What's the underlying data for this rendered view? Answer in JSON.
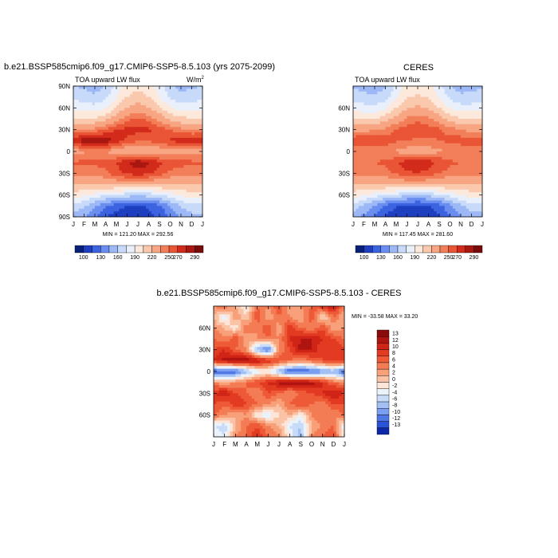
{
  "chart_data": [
    {
      "type": "heatmap",
      "title": "b.e21.BSSP585cmip6.f09_g17.CMIP6-SSP5-8.5.103 (yrs 2075-2099)",
      "subtitle_left": "TOA upward LW flux",
      "units": "W/m",
      "units_sup": "2",
      "x_ticks": [
        "J",
        "F",
        "M",
        "A",
        "M",
        "J",
        "J",
        "A",
        "S",
        "O",
        "N",
        "D",
        "J"
      ],
      "y_ticks": [
        "90N",
        "60N",
        "30N",
        "0",
        "30S",
        "60S",
        "90S"
      ],
      "y_values": [
        90,
        60,
        30,
        0,
        -30,
        -60,
        -90
      ],
      "ylim": [
        -90,
        90
      ],
      "stats": "MIN = 121.20   MAX = 292.56",
      "colorbar": {
        "labels": [
          "100",
          "130",
          "160",
          "190",
          "220",
          "250",
          "270",
          "290"
        ],
        "colors": [
          "#08207a",
          "#1d3fc0",
          "#3c63e0",
          "#6a8ef0",
          "#9cb8f6",
          "#c8daf9",
          "#e9f0fb",
          "#fde8dc",
          "#fac8ad",
          "#f7a582",
          "#f27f59",
          "#e95535",
          "#d22b1b",
          "#a81710",
          "#780a0a"
        ]
      },
      "field": {
        "n_lat": 13,
        "n_mon": 13,
        "lats": [
          90,
          75,
          60,
          45,
          30,
          15,
          0,
          -15,
          -30,
          -45,
          -60,
          -75,
          -90
        ],
        "values": [
          [
            176,
            172,
            168,
            176,
            196,
            212,
            216,
            212,
            196,
            178,
            170,
            172,
            176
          ],
          [
            186,
            182,
            178,
            186,
            204,
            220,
            226,
            220,
            204,
            188,
            180,
            182,
            186
          ],
          [
            200,
            198,
            196,
            204,
            222,
            236,
            242,
            236,
            222,
            206,
            198,
            198,
            200
          ],
          [
            222,
            220,
            222,
            230,
            244,
            256,
            262,
            256,
            246,
            232,
            224,
            222,
            222
          ],
          [
            250,
            250,
            254,
            262,
            270,
            274,
            274,
            272,
            266,
            260,
            254,
            250,
            250
          ],
          [
            278,
            286,
            290,
            286,
            276,
            268,
            262,
            262,
            266,
            272,
            276,
            276,
            278
          ],
          [
            244,
            248,
            252,
            250,
            242,
            236,
            234,
            236,
            240,
            244,
            246,
            244,
            244
          ],
          [
            262,
            262,
            262,
            264,
            270,
            280,
            288,
            282,
            272,
            266,
            264,
            262,
            262
          ],
          [
            254,
            254,
            254,
            258,
            266,
            272,
            276,
            272,
            264,
            258,
            254,
            254,
            254
          ],
          [
            236,
            236,
            236,
            238,
            240,
            242,
            242,
            240,
            238,
            236,
            236,
            236,
            236
          ],
          [
            214,
            208,
            200,
            192,
            186,
            182,
            180,
            182,
            188,
            198,
            208,
            214,
            214
          ],
          [
            186,
            176,
            162,
            146,
            136,
            130,
            128,
            132,
            142,
            160,
            176,
            186,
            186
          ],
          [
            170,
            160,
            146,
            130,
            122,
            121,
            122,
            124,
            132,
            148,
            162,
            170,
            170
          ]
        ]
      }
    },
    {
      "type": "heatmap",
      "title": "CERES",
      "subtitle_left": "TOA upward LW flux",
      "x_ticks": [
        "J",
        "F",
        "M",
        "A",
        "M",
        "J",
        "J",
        "A",
        "S",
        "O",
        "N",
        "D",
        "J"
      ],
      "y_ticks": [
        "60N",
        "30N",
        "0",
        "30S",
        "60S"
      ],
      "y_values": [
        60,
        30,
        0,
        -30,
        -60
      ],
      "ylim": [
        -90,
        90
      ],
      "stats": "MIN = 117.45   MAX = 281.60",
      "colorbar": {
        "labels": [
          "100",
          "130",
          "160",
          "190",
          "220",
          "250",
          "270",
          "290"
        ],
        "colors": [
          "#08207a",
          "#1d3fc0",
          "#3c63e0",
          "#6a8ef0",
          "#9cb8f6",
          "#c8daf9",
          "#e9f0fb",
          "#fde8dc",
          "#fac8ad",
          "#f7a582",
          "#f27f59",
          "#e95535",
          "#d22b1b",
          "#a81710",
          "#780a0a"
        ]
      },
      "field": {
        "n_lat": 13,
        "n_mon": 13,
        "lats": [
          90,
          75,
          60,
          45,
          30,
          15,
          0,
          -15,
          -30,
          -45,
          -60,
          -75,
          -90
        ],
        "values": [
          [
            172,
            168,
            166,
            174,
            194,
            210,
            214,
            210,
            194,
            176,
            168,
            170,
            172
          ],
          [
            184,
            180,
            176,
            184,
            202,
            218,
            222,
            218,
            202,
            186,
            178,
            180,
            184
          ],
          [
            198,
            196,
            194,
            202,
            220,
            234,
            238,
            234,
            220,
            204,
            196,
            196,
            198
          ],
          [
            220,
            218,
            220,
            228,
            240,
            252,
            256,
            252,
            242,
            228,
            222,
            220,
            220
          ],
          [
            246,
            246,
            248,
            254,
            262,
            266,
            268,
            266,
            262,
            256,
            250,
            246,
            246
          ],
          [
            268,
            270,
            270,
            266,
            262,
            260,
            258,
            258,
            260,
            264,
            266,
            268,
            268
          ],
          [
            250,
            250,
            252,
            252,
            248,
            244,
            242,
            244,
            248,
            250,
            250,
            250,
            250
          ],
          [
            260,
            260,
            260,
            262,
            268,
            276,
            280,
            276,
            268,
            262,
            260,
            260,
            260
          ],
          [
            254,
            254,
            254,
            256,
            262,
            268,
            270,
            266,
            260,
            256,
            254,
            254,
            254
          ],
          [
            236,
            236,
            236,
            238,
            240,
            240,
            240,
            240,
            238,
            236,
            236,
            236,
            236
          ],
          [
            212,
            206,
            198,
            190,
            184,
            180,
            178,
            180,
            186,
            196,
            206,
            212,
            212
          ],
          [
            184,
            172,
            158,
            142,
            132,
            126,
            124,
            128,
            138,
            156,
            172,
            184,
            184
          ],
          [
            168,
            156,
            142,
            126,
            118,
            117,
            118,
            120,
            128,
            144,
            158,
            168,
            168
          ]
        ]
      }
    },
    {
      "type": "heatmap",
      "title": "b.e21.BSSP585cmip6.f09_g17.CMIP6-SSP5-8.5.103 - CERES",
      "x_ticks": [
        "J",
        "F",
        "M",
        "A",
        "M",
        "J",
        "J",
        "A",
        "S",
        "O",
        "N",
        "D",
        "J"
      ],
      "y_ticks": [
        "60N",
        "30N",
        "0",
        "30S",
        "60S"
      ],
      "y_values": [
        60,
        30,
        0,
        -30,
        -60
      ],
      "ylim": [
        -90,
        90
      ],
      "stats": "MIN = -33.58   MAX =  33.20",
      "colorbar": {
        "labels": [
          "13",
          "12",
          "10",
          "8",
          "6",
          "4",
          "2",
          "0",
          "-2",
          "-4",
          "-6",
          "-8",
          "-10",
          "-12",
          "-13"
        ],
        "colors": [
          "#8b0b0b",
          "#b01410",
          "#cf2416",
          "#e23b22",
          "#ee5a37",
          "#f47c55",
          "#f7a07a",
          "#fac3a6",
          "#fde6d8",
          "#eaf2fb",
          "#c8dbf8",
          "#a3c0f4",
          "#7a9ff0",
          "#4f78e6",
          "#2a52d6",
          "#0a28a8"
        ]
      },
      "field": {
        "n_lat": 13,
        "n_mon": 13,
        "lats": [
          90,
          75,
          60,
          45,
          30,
          15,
          0,
          -15,
          -30,
          -45,
          -60,
          -75,
          -90
        ],
        "values": [
          [
            4,
            6,
            2,
            -2,
            6,
            4,
            8,
            2,
            4,
            6,
            10,
            12,
            4
          ],
          [
            2,
            -4,
            4,
            0,
            8,
            2,
            6,
            4,
            2,
            8,
            -2,
            6,
            2
          ],
          [
            4,
            2,
            -2,
            6,
            4,
            8,
            2,
            10,
            6,
            4,
            8,
            2,
            4
          ],
          [
            6,
            4,
            8,
            2,
            4,
            6,
            4,
            10,
            12,
            12,
            10,
            8,
            6
          ],
          [
            8,
            10,
            6,
            4,
            -8,
            -12,
            4,
            8,
            13,
            12,
            8,
            10,
            8
          ],
          [
            10,
            13,
            14,
            14,
            13,
            10,
            8,
            6,
            4,
            6,
            8,
            10,
            10
          ],
          [
            -13,
            -13,
            -12,
            -8,
            -4,
            -2,
            -8,
            -13,
            -13,
            -12,
            -10,
            -8,
            -13
          ],
          [
            4,
            2,
            4,
            6,
            8,
            10,
            13,
            14,
            14,
            13,
            10,
            6,
            4
          ],
          [
            10,
            12,
            8,
            6,
            4,
            8,
            6,
            4,
            6,
            8,
            10,
            12,
            10
          ],
          [
            8,
            6,
            10,
            8,
            6,
            4,
            2,
            6,
            8,
            6,
            4,
            8,
            8
          ],
          [
            6,
            4,
            2,
            4,
            -2,
            -4,
            0,
            2,
            -2,
            4,
            6,
            4,
            6
          ],
          [
            -4,
            -6,
            2,
            6,
            8,
            4,
            2,
            -4,
            -6,
            2,
            4,
            6,
            -4
          ],
          [
            -2,
            -4,
            4,
            6,
            10,
            6,
            4,
            -2,
            -8,
            4,
            6,
            8,
            -2
          ]
        ]
      }
    }
  ]
}
